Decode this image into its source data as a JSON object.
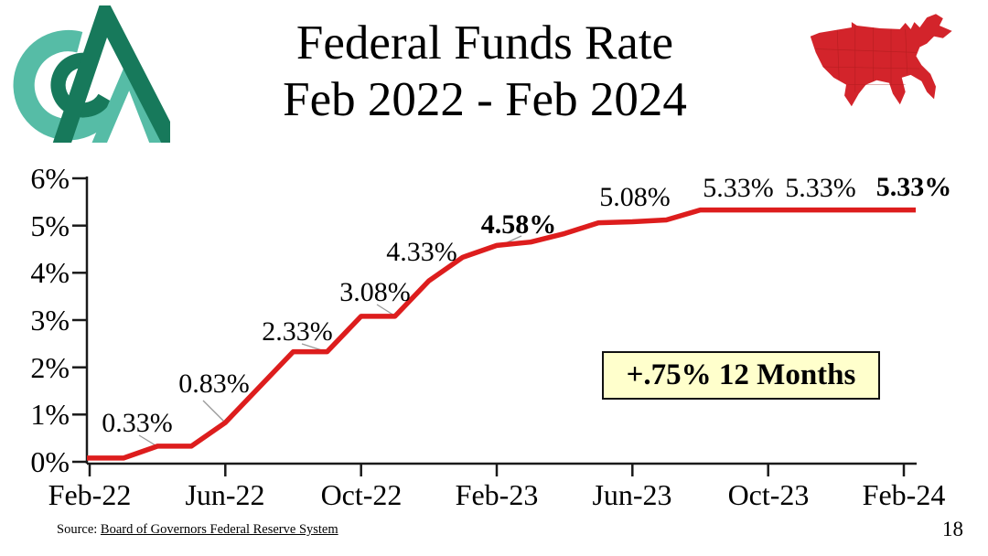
{
  "slide": {
    "title_line1": "Federal Funds Rate",
    "title_line2": "Feb 2022 - Feb 2024",
    "page_number": "18"
  },
  "source": {
    "prefix": "Source: ",
    "link": "Board of Governors Federal Reserve System"
  },
  "callout": {
    "text": "+.75% 12 Months"
  },
  "colors": {
    "line_red": "#DD1D1D",
    "map_red": "#D3242B",
    "logo_teal": "#56BCA6",
    "logo_green": "#17795B",
    "callout_bg": "#FFFFCC",
    "axis_black": "#1A1A1A",
    "leader_gray": "#999999"
  },
  "chart_data": {
    "type": "line",
    "title": "Federal Funds Rate Feb 2022 - Feb 2024",
    "xlabel": "",
    "ylabel": "",
    "ylim": [
      0,
      6
    ],
    "grid": false,
    "legend": "none",
    "line_color": "#DD1D1D",
    "y_ticks": [
      "6%",
      "5%",
      "4%",
      "3%",
      "2%",
      "1%",
      "0%"
    ],
    "x_ticks": [
      "Feb-22",
      "Jun-22",
      "Oct-22",
      "Feb-23",
      "Jun-23",
      "Oct-23",
      "Feb-24"
    ],
    "x": [
      "Feb-22",
      "Mar-22",
      "Apr-22",
      "May-22",
      "Jun-22",
      "Jul-22",
      "Aug-22",
      "Sep-22",
      "Oct-22",
      "Nov-22",
      "Dec-22",
      "Jan-23",
      "Feb-23",
      "Mar-23",
      "Apr-23",
      "May-23",
      "Jun-23",
      "Jul-23",
      "Aug-23",
      "Sep-23",
      "Oct-23",
      "Nov-23",
      "Dec-23",
      "Jan-24",
      "Feb-24"
    ],
    "values": [
      0.08,
      0.08,
      0.33,
      0.33,
      0.83,
      1.58,
      2.33,
      2.33,
      3.08,
      3.08,
      3.83,
      4.33,
      4.58,
      4.65,
      4.83,
      5.06,
      5.08,
      5.12,
      5.33,
      5.33,
      5.33,
      5.33,
      5.33,
      5.33,
      5.33
    ],
    "annotations": [
      {
        "text": "0.33%",
        "bold": false
      },
      {
        "text": "0.83%",
        "bold": false
      },
      {
        "text": "2.33%",
        "bold": false
      },
      {
        "text": "3.08%",
        "bold": false
      },
      {
        "text": "4.33%",
        "bold": false
      },
      {
        "text": "4.58%",
        "bold": true
      },
      {
        "text": "5.08%",
        "bold": false
      },
      {
        "text": "5.33%",
        "bold": false
      },
      {
        "text": "5.33%",
        "bold": false
      },
      {
        "text": "5.33%",
        "bold": true
      }
    ]
  }
}
